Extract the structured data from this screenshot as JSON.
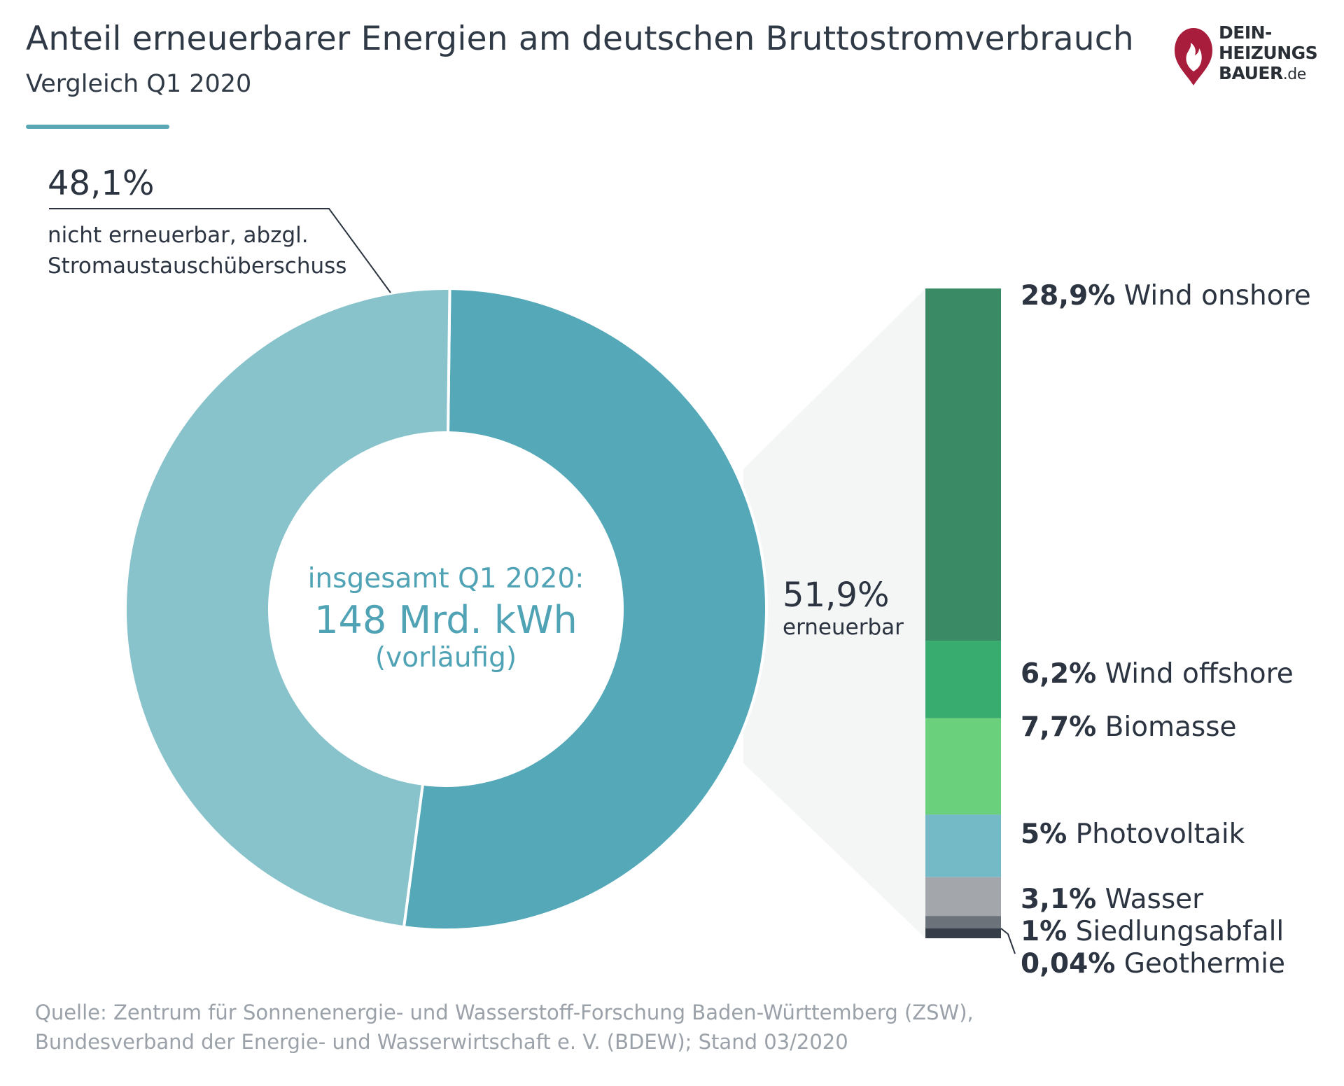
{
  "header": {
    "title": "Anteil erneuerbarer Energien am deutschen Bruttostromverbrauch",
    "subtitle": "Vergleich Q1 2020"
  },
  "logo": {
    "line1": "DEIN-",
    "line2": "HEIZUNGS",
    "line3": "BAUER",
    "suffix": ".de",
    "icon": "flame-icon",
    "color": "#a81d3c"
  },
  "colors": {
    "non_renewable": "#88c3cc",
    "renewable": "#54a8b8",
    "wind_onshore": "#3a8a65",
    "wind_offshore": "#38ab6f",
    "biomasse": "#6ad07b",
    "photovoltaik": "#73b9c6",
    "wasser": "#a3a7ac",
    "siedlungsabfall": "#6b7279",
    "geothermie": "#353d48",
    "connector": "#f4f6f6",
    "accent": "#5aa7b6"
  },
  "center": {
    "line1": "insgesamt Q1 2020:",
    "line2": "148 Mrd. kWh",
    "line3": "(vorläufig)"
  },
  "labels": {
    "non_renewable_pct": "48,1%",
    "non_renewable_text1": "nicht erneuerbar, abzgl.",
    "non_renewable_text2": "Stromaustauschüberschuss",
    "renewable_pct": "51,9%",
    "renewable_text": "erneuerbar"
  },
  "chart_data": [
    {
      "type": "pie",
      "title": "Anteil erneuerbarer Energien am deutschen Bruttostromverbrauch",
      "subtitle": "Vergleich Q1 2020",
      "slices": [
        {
          "name": "erneuerbar",
          "value": 51.9,
          "label": "51,9%"
        },
        {
          "name": "nicht erneuerbar, abzgl. Stromaustauschüberschuss",
          "value": 48.1,
          "label": "48,1%"
        }
      ],
      "total": "148 Mrd. kWh"
    },
    {
      "type": "bar",
      "stacked": true,
      "orientation": "vertical",
      "segments": [
        {
          "name": "Wind onshore",
          "value": 28.9,
          "label": "28,9%"
        },
        {
          "name": "Wind offshore",
          "value": 6.2,
          "label": "6,2%"
        },
        {
          "name": "Biomasse",
          "value": 7.7,
          "label": "7,7%"
        },
        {
          "name": "Photovoltaik",
          "value": 5,
          "label": "5%"
        },
        {
          "name": "Wasser",
          "value": 3.1,
          "label": "3,1%"
        },
        {
          "name": "Siedlungsabfall",
          "value": 1,
          "label": "1%"
        },
        {
          "name": "Geothermie",
          "value": 0.04,
          "label": "0,04%"
        }
      ]
    }
  ],
  "source": {
    "line1": "Quelle: Zentrum für Sonnenenergie- und Wasserstoff-Forschung Baden-Württemberg (ZSW),",
    "line2": "Bundesverband der Energie- und Wasserwirtschaft e. V. (BDEW); Stand 03/2020"
  }
}
